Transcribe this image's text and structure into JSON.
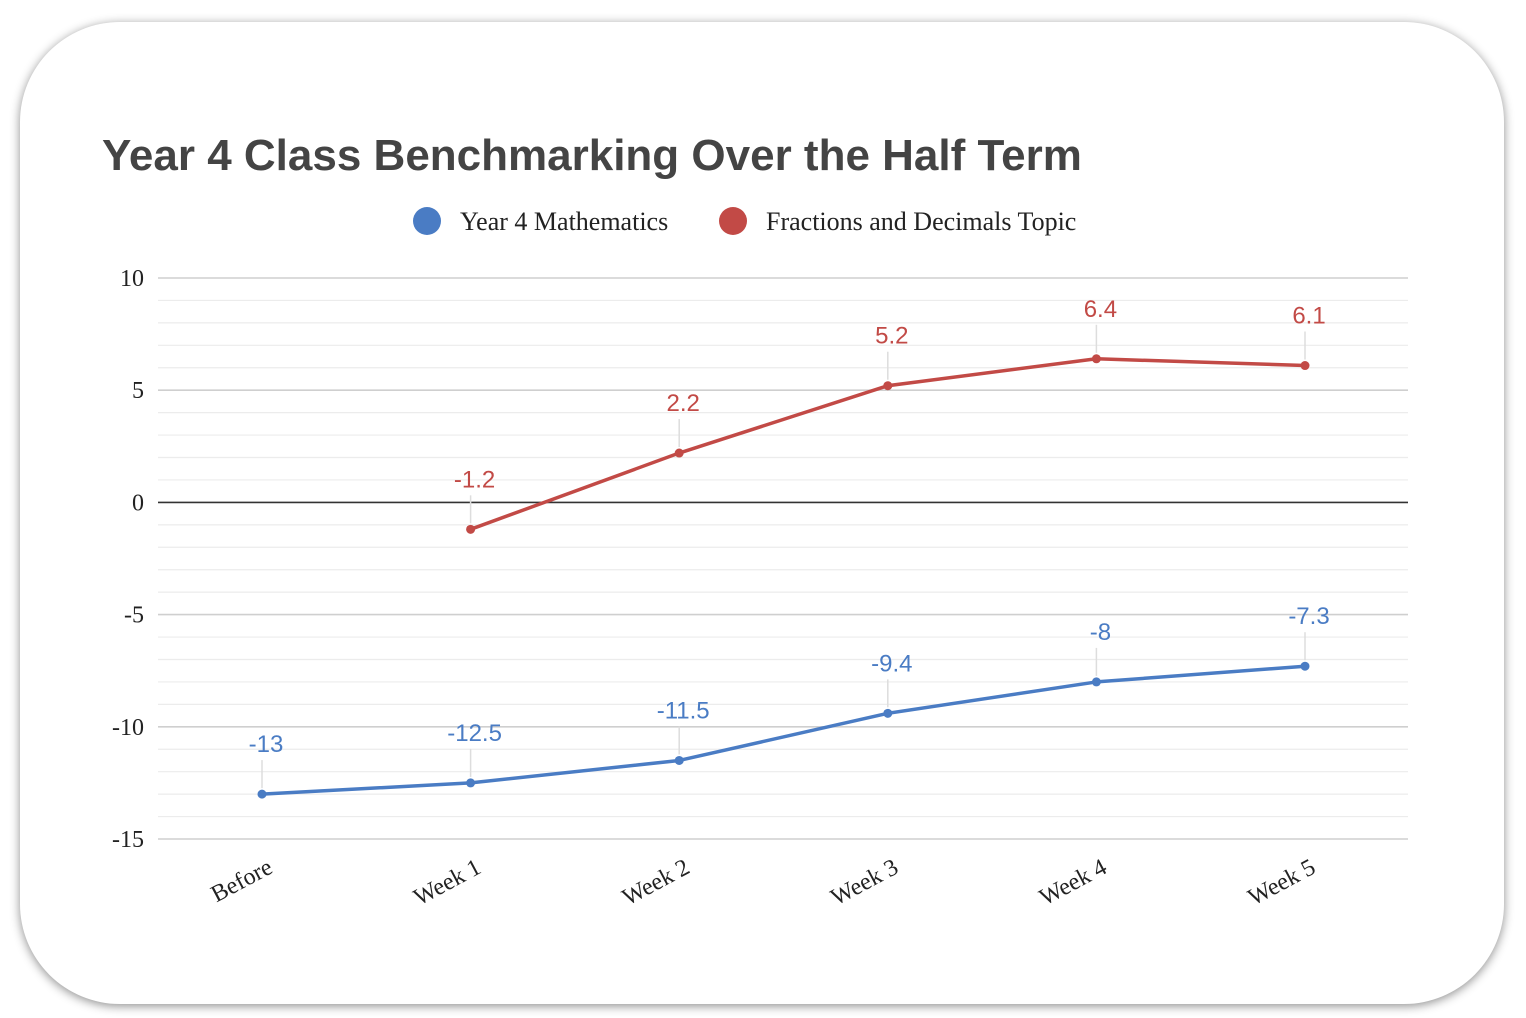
{
  "chart_data": {
    "type": "line",
    "title": "Year 4 Class Benchmarking Over the Half Term",
    "categories": [
      "Before",
      "Week 1",
      "Week 2",
      "Week 3",
      "Week 4",
      "Week 5"
    ],
    "series": [
      {
        "name": "Year 4 Mathematics",
        "color": "#4a7cc4",
        "values": [
          -13,
          -12.5,
          -11.5,
          -9.4,
          -8,
          -7.3
        ],
        "labels": [
          "-13",
          "-12.5",
          "-11.5",
          "-9.4",
          "-8",
          "-7.3"
        ]
      },
      {
        "name": "Fractions and Decimals Topic",
        "color": "#c24a46",
        "values": [
          null,
          -1.2,
          2.2,
          5.2,
          6.4,
          6.1
        ],
        "labels": [
          "",
          "-1.2",
          "2.2",
          "5.2",
          "6.4",
          "6.1"
        ]
      }
    ],
    "yticks": [
      10,
      5,
      0,
      -5,
      -10,
      -15
    ],
    "ytick_labels": [
      "10",
      "5",
      "0",
      "-5",
      "-10",
      "-15"
    ],
    "ylim": [
      -15,
      10
    ],
    "grid": true,
    "legend_position": "top"
  }
}
